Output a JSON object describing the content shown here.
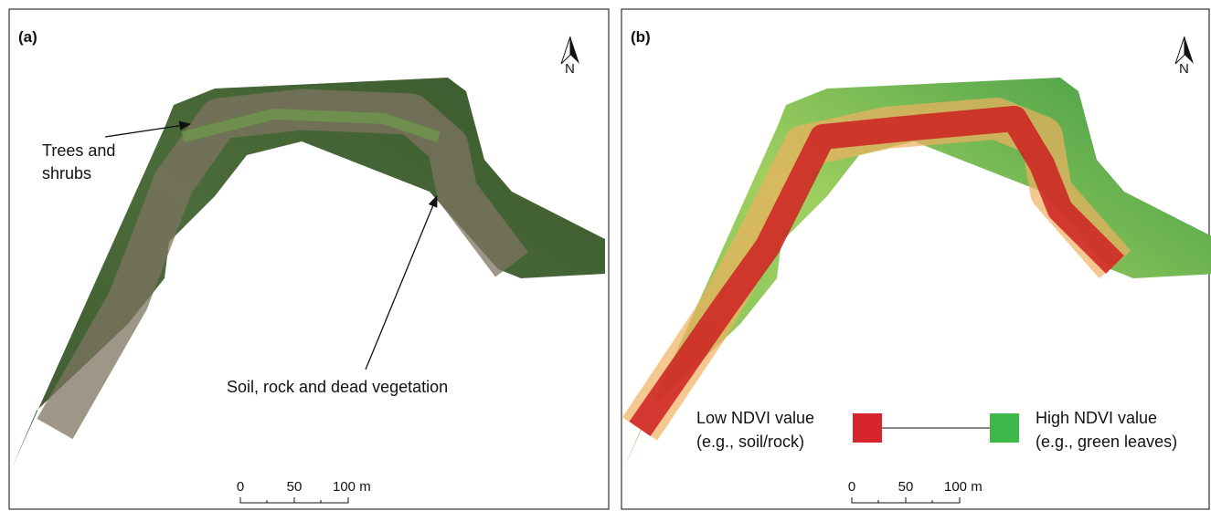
{
  "panels": [
    {
      "label": "(a)",
      "north": "N",
      "annotations": [
        [
          "Trees and",
          "shrubs"
        ],
        [
          "Soil, rock and dead vegetation"
        ]
      ],
      "scale": [
        "0",
        "50",
        "100 m"
      ]
    },
    {
      "label": "(b)",
      "north": "N",
      "legend": {
        "low": [
          "Low NDVI value",
          "(e.g., soil/rock)"
        ],
        "high": [
          "High NDVI value",
          "(e.g., green leaves)"
        ]
      },
      "scale": [
        "0",
        "50",
        "100 m"
      ]
    }
  ]
}
